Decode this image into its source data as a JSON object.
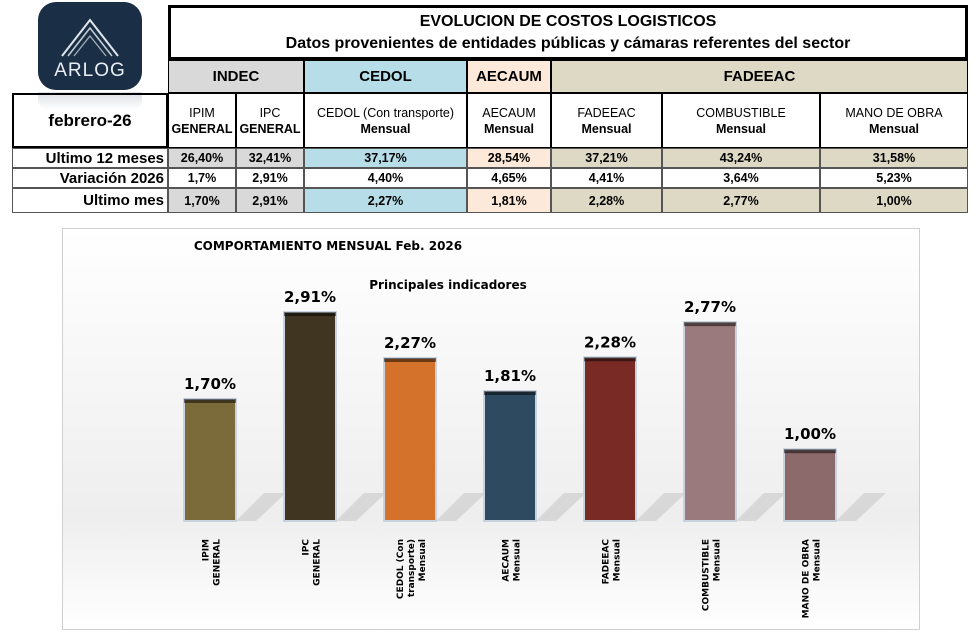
{
  "logo": {
    "text": "ARLOG"
  },
  "header": {
    "title": "EVOLUCION DE COSTOS LOGISTICOS",
    "subtitle": "Datos provenientes de entidades públicas y cámaras referentes del sector",
    "period": "febrero-26"
  },
  "groups": [
    "INDEC",
    "CEDOL",
    "AECAUM",
    "FADEEAC"
  ],
  "columns": [
    [
      "IPIM",
      "GENERAL"
    ],
    [
      "IPC",
      "GENERAL"
    ],
    [
      "CEDOL (Con transporte)",
      "Mensual"
    ],
    [
      "AECAUM",
      "Mensual"
    ],
    [
      "FADEEAC",
      "Mensual"
    ],
    [
      "COMBUSTIBLE",
      "Mensual"
    ],
    [
      "MANO DE OBRA",
      "Mensual"
    ]
  ],
  "rows": [
    {
      "label": "Ultimo 12 meses",
      "values": [
        "26,40%",
        "32,41%",
        "37,17%",
        "28,54%",
        "37,21%",
        "43,24%",
        "31,58%"
      ]
    },
    {
      "label": "Variación 2026",
      "values": [
        "1,7%",
        "2,91%",
        "4,40%",
        "4,65%",
        "4,41%",
        "3,64%",
        "5,23%"
      ]
    },
    {
      "label": "Ultimo mes",
      "values": [
        "1,70%",
        "2,91%",
        "2,27%",
        "1,81%",
        "2,28%",
        "2,77%",
        "1,00%"
      ]
    }
  ],
  "chart_data": {
    "type": "bar",
    "title": "COMPORTAMIENTO MENSUAL Feb. 2026",
    "subtitle": "Principales indicadores",
    "categories": [
      [
        "IPIM",
        "GENERAL"
      ],
      [
        "IPC",
        "GENERAL"
      ],
      [
        "CEDOL (Con",
        "transporte)",
        "Mensual"
      ],
      [
        "AECAUM",
        "Mensual"
      ],
      [
        "FADEEAC",
        "Mensual"
      ],
      [
        "COMBUSTIBLE",
        "Mensual"
      ],
      [
        "MANO DE OBRA",
        "Mensual"
      ]
    ],
    "values": [
      1.7,
      2.91,
      2.27,
      1.81,
      2.28,
      2.77,
      1.0
    ],
    "labels": [
      "1,70%",
      "2,91%",
      "2,27%",
      "1,81%",
      "2,28%",
      "2,77%",
      "1,00%"
    ],
    "colors": [
      "#7b6a3a",
      "#3f3520",
      "#d4722c",
      "#2e4a60",
      "#7a2a24",
      "#9a7a7c",
      "#8c6a6c"
    ],
    "ylim": [
      0,
      3.2
    ]
  }
}
